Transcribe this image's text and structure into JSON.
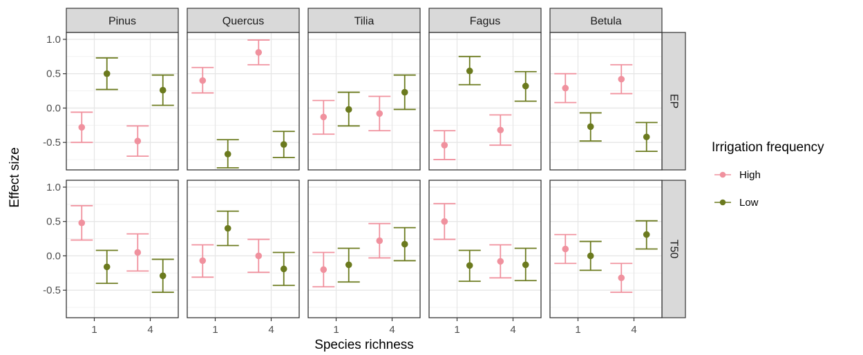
{
  "chart_data": {
    "type": "scatter",
    "subtype": "faceted point-range (mean with error bars)",
    "xlabel": "Species richness",
    "ylabel": "Effect size",
    "x_categories": [
      "1",
      "4"
    ],
    "ylim": [
      -0.9,
      1.1
    ],
    "y_ticks": [
      -0.5,
      0.0,
      0.5,
      1.0
    ],
    "y_tick_labels": [
      "-0.5",
      "0.0",
      "0.5",
      "1.0"
    ],
    "grid": true,
    "facet_columns": [
      "Pinus",
      "Quercus",
      "Tilia",
      "Fagus",
      "Betula"
    ],
    "facet_rows": [
      "EP",
      "T50"
    ],
    "legend": {
      "title": "Irrigation frequency",
      "position": "right",
      "items": [
        {
          "label": "High",
          "color": "#F0919E"
        },
        {
          "label": "Low",
          "color": "#6B7A1E"
        }
      ]
    },
    "series": [
      {
        "name": "High",
        "color": "#F0919E",
        "panels": {
          "EP": {
            "Pinus": [
              {
                "x": "1",
                "y": -0.28,
                "lo": -0.5,
                "hi": -0.06
              },
              {
                "x": "4",
                "y": -0.48,
                "lo": -0.7,
                "hi": -0.26
              }
            ],
            "Quercus": [
              {
                "x": "1",
                "y": 0.4,
                "lo": 0.22,
                "hi": 0.59
              },
              {
                "x": "4",
                "y": 0.81,
                "lo": 0.63,
                "hi": 0.99
              }
            ],
            "Tilia": [
              {
                "x": "1",
                "y": -0.13,
                "lo": -0.38,
                "hi": 0.11
              },
              {
                "x": "4",
                "y": -0.08,
                "lo": -0.33,
                "hi": 0.17
              }
            ],
            "Fagus": [
              {
                "x": "1",
                "y": -0.54,
                "lo": -0.75,
                "hi": -0.33
              },
              {
                "x": "4",
                "y": -0.32,
                "lo": -0.54,
                "hi": -0.1
              }
            ],
            "Betula": [
              {
                "x": "1",
                "y": 0.29,
                "lo": 0.08,
                "hi": 0.5
              },
              {
                "x": "4",
                "y": 0.42,
                "lo": 0.21,
                "hi": 0.63
              }
            ]
          },
          "T50": {
            "Pinus": [
              {
                "x": "1",
                "y": 0.48,
                "lo": 0.23,
                "hi": 0.73
              },
              {
                "x": "4",
                "y": 0.05,
                "lo": -0.22,
                "hi": 0.32
              }
            ],
            "Quercus": [
              {
                "x": "1",
                "y": -0.07,
                "lo": -0.31,
                "hi": 0.16
              },
              {
                "x": "4",
                "y": 0.0,
                "lo": -0.24,
                "hi": 0.24
              }
            ],
            "Tilia": [
              {
                "x": "1",
                "y": -0.2,
                "lo": -0.45,
                "hi": 0.05
              },
              {
                "x": "4",
                "y": 0.22,
                "lo": -0.03,
                "hi": 0.47
              }
            ],
            "Fagus": [
              {
                "x": "1",
                "y": 0.5,
                "lo": 0.24,
                "hi": 0.76
              },
              {
                "x": "4",
                "y": -0.08,
                "lo": -0.32,
                "hi": 0.16
              }
            ],
            "Betula": [
              {
                "x": "1",
                "y": 0.1,
                "lo": -0.11,
                "hi": 0.31
              },
              {
                "x": "4",
                "y": -0.32,
                "lo": -0.53,
                "hi": -0.11
              }
            ]
          }
        }
      },
      {
        "name": "Low",
        "color": "#6B7A1E",
        "panels": {
          "EP": {
            "Pinus": [
              {
                "x": "1",
                "y": 0.5,
                "lo": 0.27,
                "hi": 0.73
              },
              {
                "x": "4",
                "y": 0.26,
                "lo": 0.04,
                "hi": 0.48
              }
            ],
            "Quercus": [
              {
                "x": "1",
                "y": -0.67,
                "lo": -0.87,
                "hi": -0.46
              },
              {
                "x": "4",
                "y": -0.53,
                "lo": -0.72,
                "hi": -0.34
              }
            ],
            "Tilia": [
              {
                "x": "1",
                "y": -0.02,
                "lo": -0.26,
                "hi": 0.23
              },
              {
                "x": "4",
                "y": 0.23,
                "lo": -0.02,
                "hi": 0.48
              }
            ],
            "Fagus": [
              {
                "x": "1",
                "y": 0.54,
                "lo": 0.34,
                "hi": 0.75
              },
              {
                "x": "4",
                "y": 0.32,
                "lo": 0.1,
                "hi": 0.53
              }
            ],
            "Betula": [
              {
                "x": "1",
                "y": -0.27,
                "lo": -0.48,
                "hi": -0.07
              },
              {
                "x": "4",
                "y": -0.42,
                "lo": -0.63,
                "hi": -0.21
              }
            ]
          },
          "T50": {
            "Pinus": [
              {
                "x": "1",
                "y": -0.16,
                "lo": -0.4,
                "hi": 0.08
              },
              {
                "x": "4",
                "y": -0.29,
                "lo": -0.53,
                "hi": -0.05
              }
            ],
            "Quercus": [
              {
                "x": "1",
                "y": 0.4,
                "lo": 0.15,
                "hi": 0.65
              },
              {
                "x": "4",
                "y": -0.19,
                "lo": -0.43,
                "hi": 0.05
              }
            ],
            "Tilia": [
              {
                "x": "1",
                "y": -0.13,
                "lo": -0.38,
                "hi": 0.11
              },
              {
                "x": "4",
                "y": 0.17,
                "lo": -0.07,
                "hi": 0.41
              }
            ],
            "Fagus": [
              {
                "x": "1",
                "y": -0.14,
                "lo": -0.37,
                "hi": 0.08
              },
              {
                "x": "4",
                "y": -0.13,
                "lo": -0.36,
                "hi": 0.11
              }
            ],
            "Betula": [
              {
                "x": "1",
                "y": 0.0,
                "lo": -0.21,
                "hi": 0.21
              },
              {
                "x": "4",
                "y": 0.31,
                "lo": 0.1,
                "hi": 0.51
              }
            ]
          }
        }
      }
    ]
  }
}
